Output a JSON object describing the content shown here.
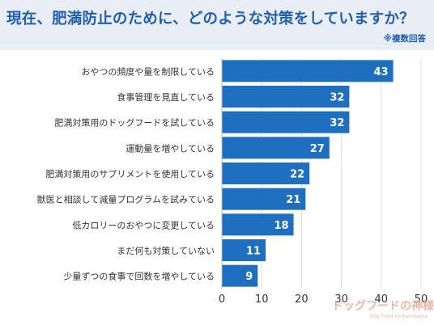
{
  "title": "現在、肥満防止のために、どのような対策をしていますか？",
  "subtitle": "※複数回答",
  "logo": {
    "main": "ドッグフードの神様",
    "sub": "Dog Food no Kamisama"
  },
  "colors": {
    "bar": "#1f6fc0",
    "title": "#1f5fb0",
    "band": "#e9eef4",
    "grid": "#dcdcdc",
    "text": "#333333"
  },
  "chart_data": {
    "type": "bar",
    "orientation": "horizontal",
    "categories": [
      "おやつの頻度や量を制限している",
      "食事管理を見直している",
      "肥満対策用のドッグフードを試している",
      "運動量を増やしている",
      "肥満対策用のサプリメントを使用している",
      "獣医と相談して減量プログラムを試みている",
      "低カロリーのおやつに変更している",
      "まだ何も対策していない",
      "少量ずつの食事で回数を増やしている"
    ],
    "values": [
      43,
      32,
      32,
      27,
      22,
      21,
      18,
      11,
      9
    ],
    "xlim": [
      0,
      50
    ],
    "xticks": [
      0,
      10,
      20,
      30,
      40,
      50
    ],
    "grid": true,
    "data_labels": true
  }
}
